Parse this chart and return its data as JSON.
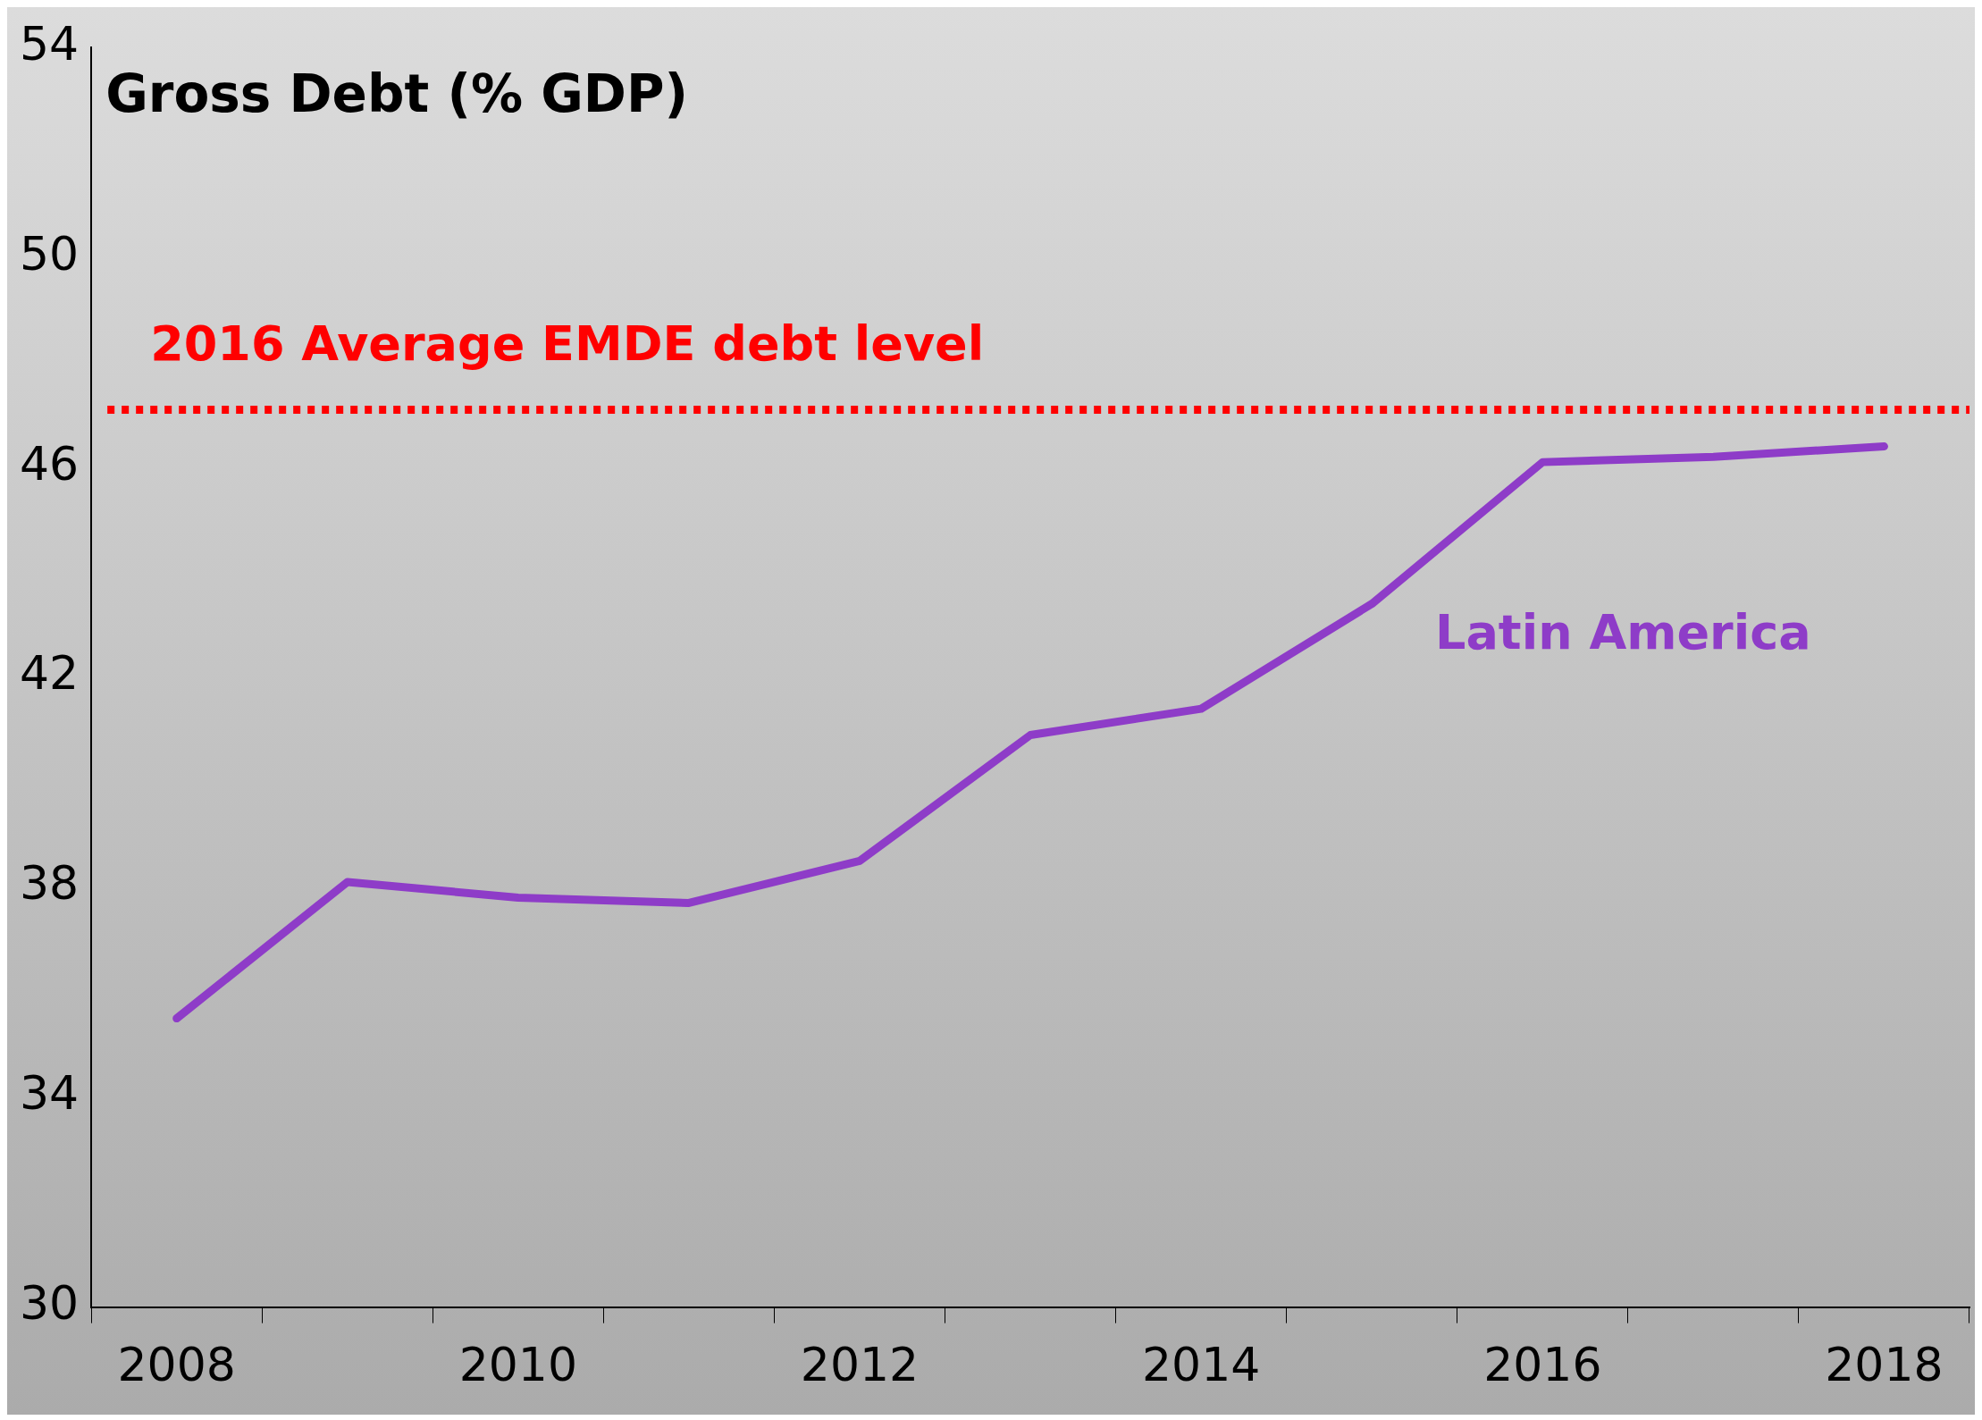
{
  "chart_data": {
    "type": "line",
    "title": "Gross Debt (% GDP)",
    "categories": [
      "2008",
      null,
      "2010",
      null,
      "2012",
      null,
      "2014",
      null,
      "2016",
      null,
      "2018"
    ],
    "series": [
      {
        "name": "Latin America",
        "color": "#8e3cc8",
        "values": [
          35.5,
          38.1,
          37.8,
          37.7,
          38.5,
          40.9,
          41.4,
          43.4,
          46.1,
          46.2,
          46.4
        ]
      }
    ],
    "ylim": [
      30,
      54
    ],
    "yticks": [
      30,
      34,
      38,
      42,
      46,
      50,
      54
    ],
    "ref_lines": [
      {
        "axis": "y",
        "value": 47.1,
        "label": "2016 Average EMDE debt level",
        "color": "#ff0000",
        "line_style": "dotted"
      }
    ],
    "legend": false,
    "marker": "none",
    "line_style": "solid"
  }
}
